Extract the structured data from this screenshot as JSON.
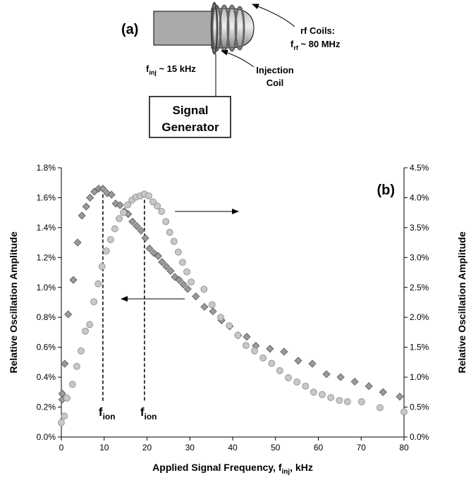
{
  "diagram": {
    "panel": "(a)",
    "rf_label": {
      "line1": "rf Coils:",
      "main": "f",
      "sub": "rf",
      "tail": " ~ 80 MHz"
    },
    "inj_label": {
      "main": "f",
      "sub": "inj",
      "tail": " ~ 15 kHz"
    },
    "coil_label": {
      "line1": "Injection",
      "line2": "Coil"
    },
    "generator": {
      "line1": "Signal",
      "line2": "Generator"
    }
  },
  "chart_data": {
    "type": "scatter",
    "panel": "(b)",
    "x_label": {
      "text": "Applied Signal Frequency, f",
      "sub": "inj",
      "tail": ", kHz"
    },
    "y_label": "Relative Oscillation Amplitude",
    "y2_label": "Relative Oscillation Amplitude",
    "xlim": [
      0,
      80
    ],
    "xticks": [
      0,
      10,
      20,
      30,
      40,
      50,
      60,
      70,
      80
    ],
    "ylim": [
      0,
      1.8
    ],
    "yticks": [
      {
        "value": 0,
        "label": "0.0%"
      },
      {
        "value": 0.2,
        "label": "0.2%"
      },
      {
        "value": 0.4,
        "label": "0.4%"
      },
      {
        "value": 0.6,
        "label": "0.6%"
      },
      {
        "value": 0.8,
        "label": "0.8%"
      },
      {
        "value": 1.0,
        "label": "1.0%"
      },
      {
        "value": 1.2,
        "label": "1.2%"
      },
      {
        "value": 1.4,
        "label": "1.4%"
      },
      {
        "value": 1.6,
        "label": "1.6%"
      },
      {
        "value": 1.8,
        "label": "1.8%"
      }
    ],
    "y2lim": [
      0,
      4.5
    ],
    "y2ticks": [
      {
        "value": 0,
        "label": "0.0%"
      },
      {
        "value": 0.5,
        "label": "0.5%"
      },
      {
        "value": 1.0,
        "label": "1.0%"
      },
      {
        "value": 1.5,
        "label": "1.5%"
      },
      {
        "value": 2.0,
        "label": "2.0%"
      },
      {
        "value": 2.5,
        "label": "2.5%"
      },
      {
        "value": 3.0,
        "label": "3.0%"
      },
      {
        "value": 3.5,
        "label": "3.5%"
      },
      {
        "value": 4.0,
        "label": "4.0%"
      },
      {
        "value": 4.5,
        "label": "4.5%"
      }
    ],
    "series": [
      {
        "marker": "diamond",
        "color": "#9a9a9a",
        "x": [
          0.2,
          0.2,
          0.8,
          1.6,
          2.8,
          3.8,
          4.8,
          5.8,
          6.7,
          7.7,
          8.7,
          9.7,
          10.7,
          11.7,
          12.7,
          13.7,
          14.7,
          15.6,
          16.6,
          17.6,
          18.6,
          19.6,
          20.6,
          21.6,
          22.6,
          23.5,
          24.5,
          25.5,
          26.5,
          27.5,
          28.5,
          29.5,
          31.4,
          33.4,
          35.4,
          37.4,
          39.3,
          41.3,
          43.3,
          45.4,
          48.7,
          52,
          55.3,
          58.6,
          61.9,
          65.2,
          68.5,
          71.8,
          75.1,
          79
        ],
        "values": [
          0.29,
          0.25,
          0.49,
          0.82,
          1.05,
          1.3,
          1.48,
          1.54,
          1.6,
          1.64,
          1.66,
          1.66,
          1.63,
          1.62,
          1.56,
          1.55,
          1.51,
          1.49,
          1.44,
          1.41,
          1.38,
          1.33,
          1.26,
          1.23,
          1.21,
          1.17,
          1.14,
          1.11,
          1.07,
          1.05,
          1.02,
          0.99,
          0.94,
          0.87,
          0.84,
          0.78,
          0.74,
          0.68,
          0.67,
          0.61,
          0.59,
          0.57,
          0.51,
          0.49,
          0.42,
          0.4,
          0.37,
          0.34,
          0.3,
          0.27
        ]
      },
      {
        "marker": "circle",
        "color": "#c8c8c8",
        "axis": "y2",
        "x": [
          0,
          0.7,
          1.3,
          2.6,
          3.6,
          4.6,
          5.6,
          6.6,
          7.6,
          8.6,
          9.5,
          10.5,
          11.5,
          12.5,
          13.5,
          14.5,
          15.5,
          16.5,
          17.4,
          18.4,
          19.4,
          20.4,
          21.4,
          22.4,
          23.4,
          24.4,
          25.3,
          26.3,
          27.3,
          28.3,
          29.3,
          30.3,
          33.3,
          35.2,
          37.2,
          39.2,
          41.2,
          43.1,
          45.1,
          47.1,
          49.1,
          51,
          53,
          55,
          57,
          58.9,
          60.9,
          62.9,
          64.9,
          66.8,
          70.1,
          74.4,
          80
        ],
        "values": [
          0.24,
          0.35,
          0.65,
          0.88,
          1.18,
          1.44,
          1.77,
          1.88,
          2.26,
          2.56,
          2.85,
          3.11,
          3.3,
          3.48,
          3.65,
          3.75,
          3.88,
          3.96,
          4.01,
          4.03,
          4.06,
          4.03,
          3.93,
          3.86,
          3.77,
          3.6,
          3.42,
          3.27,
          3.09,
          2.92,
          2.76,
          2.59,
          2.47,
          2.21,
          2.0,
          1.86,
          1.7,
          1.53,
          1.44,
          1.32,
          1.23,
          1.11,
          0.99,
          0.92,
          0.85,
          0.75,
          0.71,
          0.66,
          0.61,
          0.59,
          0.59,
          0.49,
          0.42
        ]
      }
    ],
    "peak_lines": [
      {
        "x": 9.7,
        "axis": "y",
        "top": 1.66,
        "main": "f",
        "sub": "ion"
      },
      {
        "x": 19.4,
        "axis": "y2",
        "top": 4.06,
        "main": "f",
        "sub": "ion"
      }
    ]
  }
}
